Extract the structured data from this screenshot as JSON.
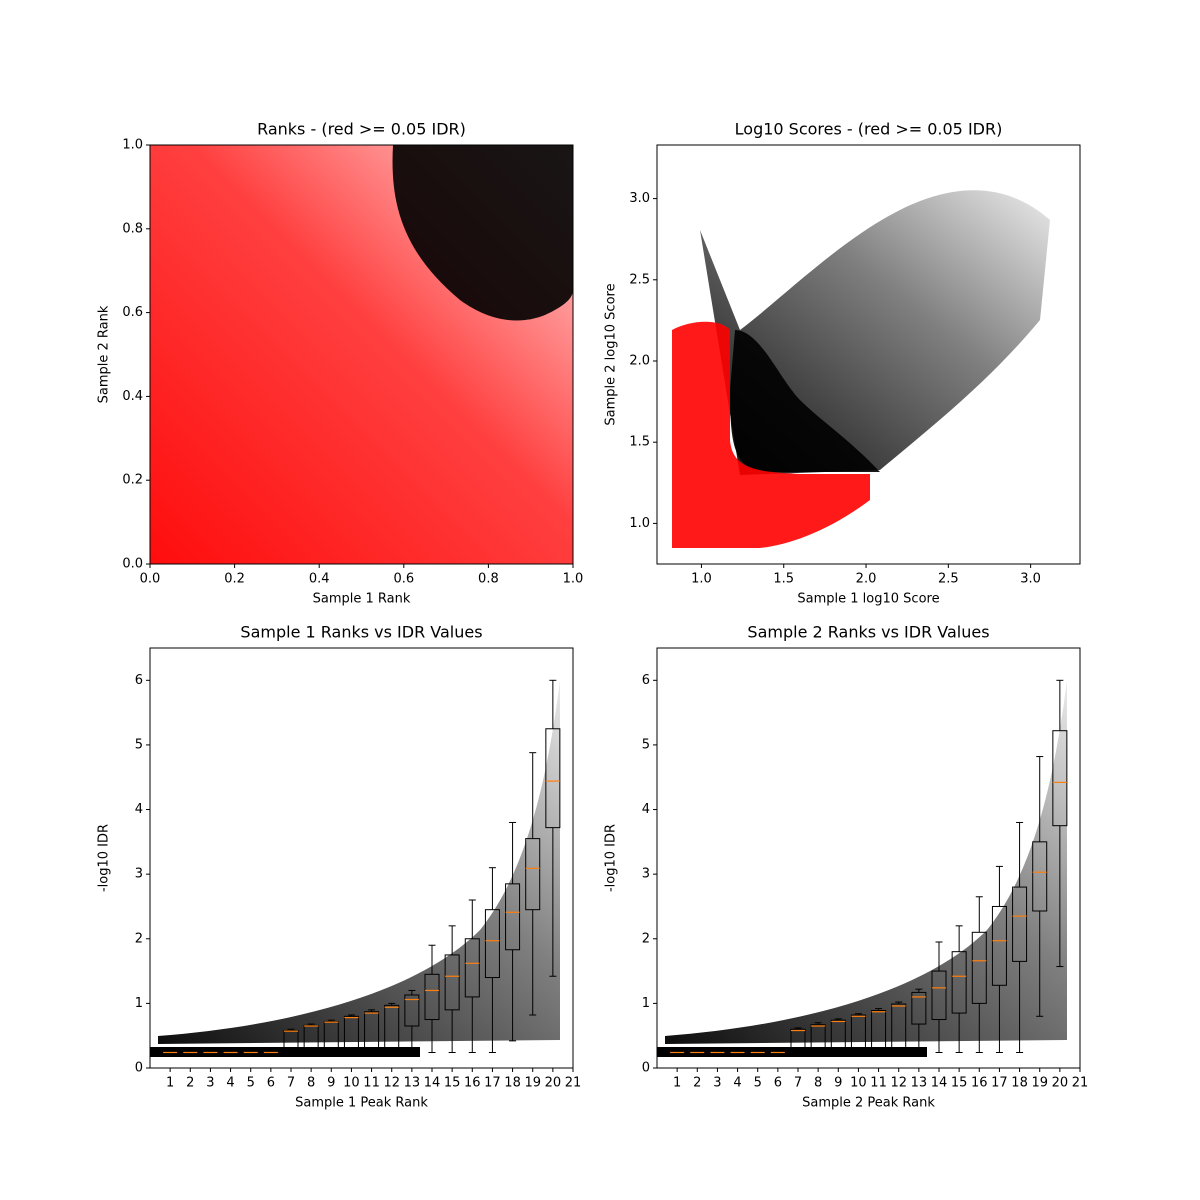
{
  "chart_data": [
    {
      "type": "scatter",
      "title": "Ranks - (red >= 0.05 IDR)",
      "xlabel": "Sample 1 Rank",
      "ylabel": "Sample 2 Rank",
      "xlim": [
        0,
        1
      ],
      "ylim": [
        0,
        1
      ],
      "xticks": [
        {
          "value": 0,
          "label": "0.0"
        },
        0.2,
        0.4,
        0.6,
        0.8,
        {
          "value": 1,
          "label": "1.0"
        }
      ],
      "yticks": [
        {
          "value": 0,
          "label": "0.0"
        },
        0.2,
        0.4,
        0.6,
        0.8,
        {
          "value": 1,
          "label": "1.0"
        }
      ]
    },
    {
      "type": "scatter",
      "title": "Log10 Scores - (red >= 0.05 IDR)",
      "xlabel": "Sample 1 log10 Score",
      "ylabel": "Sample 2 log10 Score",
      "xlim": [
        0.73,
        3.3
      ],
      "ylim": [
        0.75,
        3.33
      ],
      "xticks": [
        {
          "value": 1,
          "label": "1.0"
        },
        1.5,
        {
          "value": 2,
          "label": "2.0"
        },
        2.5,
        {
          "value": 3,
          "label": "3.0"
        }
      ],
      "yticks": [
        {
          "value": 1,
          "label": "1.0"
        },
        1.5,
        {
          "value": 2,
          "label": "2.0"
        },
        2.5,
        {
          "value": 3,
          "label": "3.0"
        }
      ]
    },
    {
      "type": "box",
      "title": "Sample 1 Ranks vs IDR Values",
      "xlabel": "Sample 1 Peak Rank",
      "ylabel": "-log10 IDR",
      "xlim": [
        0,
        21
      ],
      "ylim": [
        0,
        6.5
      ],
      "xticks": [
        1,
        2,
        3,
        4,
        5,
        6,
        7,
        8,
        9,
        10,
        11,
        12,
        13,
        14,
        15,
        16,
        17,
        18,
        19,
        20,
        21
      ],
      "yticks": [
        0,
        1,
        2,
        3,
        4,
        5,
        6
      ],
      "x": [
        1,
        2,
        3,
        4,
        5,
        6,
        7,
        8,
        9,
        10,
        11,
        12,
        13,
        14,
        15,
        16,
        17,
        18,
        19,
        20
      ],
      "median": [
        0.24,
        0.24,
        0.24,
        0.24,
        0.24,
        0.24,
        0.57,
        0.65,
        0.71,
        0.78,
        0.85,
        0.94,
        1.06,
        1.2,
        1.42,
        1.62,
        1.97,
        2.41,
        3.09,
        4.44
      ],
      "q1": [
        0.24,
        0.24,
        0.24,
        0.24,
        0.24,
        0.24,
        0.25,
        0.25,
        0.25,
        0.25,
        0.26,
        0.3,
        0.65,
        0.75,
        0.9,
        1.1,
        1.4,
        1.83,
        2.45,
        3.72
      ],
      "q3": [
        0.26,
        0.26,
        0.26,
        0.26,
        0.26,
        0.26,
        0.58,
        0.66,
        0.72,
        0.8,
        0.87,
        0.97,
        1.13,
        1.45,
        1.75,
        2.0,
        2.45,
        2.85,
        3.55,
        5.25
      ],
      "whislo": [
        0.24,
        0.24,
        0.24,
        0.24,
        0.24,
        0.24,
        0.24,
        0.24,
        0.24,
        0.24,
        0.24,
        0.24,
        0.24,
        0.24,
        0.24,
        0.24,
        0.24,
        0.42,
        0.82,
        1.42
      ],
      "whishi": [
        0.28,
        0.28,
        0.28,
        0.28,
        0.28,
        0.28,
        0.6,
        0.68,
        0.74,
        0.82,
        0.9,
        1.0,
        1.2,
        1.9,
        2.2,
        2.6,
        3.1,
        3.8,
        4.88,
        6.0
      ]
    },
    {
      "type": "box",
      "title": "Sample 2 Ranks vs IDR Values",
      "xlabel": "Sample 2 Peak Rank",
      "ylabel": "-log10 IDR",
      "xlim": [
        0,
        21
      ],
      "ylim": [
        0,
        6.5
      ],
      "xticks": [
        1,
        2,
        3,
        4,
        5,
        6,
        7,
        8,
        9,
        10,
        11,
        12,
        13,
        14,
        15,
        16,
        17,
        18,
        19,
        20,
        21
      ],
      "yticks": [
        0,
        1,
        2,
        3,
        4,
        5,
        6
      ],
      "x": [
        1,
        2,
        3,
        4,
        5,
        6,
        7,
        8,
        9,
        10,
        11,
        12,
        13,
        14,
        15,
        16,
        17,
        18,
        19,
        20
      ],
      "median": [
        0.24,
        0.24,
        0.24,
        0.24,
        0.24,
        0.24,
        0.58,
        0.65,
        0.72,
        0.8,
        0.87,
        0.96,
        1.1,
        1.24,
        1.42,
        1.66,
        1.97,
        2.35,
        3.03,
        4.42
      ],
      "q1": [
        0.24,
        0.24,
        0.24,
        0.24,
        0.24,
        0.24,
        0.25,
        0.25,
        0.25,
        0.25,
        0.26,
        0.3,
        0.68,
        0.75,
        0.85,
        1.0,
        1.28,
        1.65,
        2.43,
        3.75
      ],
      "q3": [
        0.26,
        0.26,
        0.26,
        0.26,
        0.26,
        0.26,
        0.6,
        0.67,
        0.74,
        0.82,
        0.89,
        0.99,
        1.17,
        1.5,
        1.8,
        2.1,
        2.5,
        2.8,
        3.5,
        5.22
      ],
      "whislo": [
        0.24,
        0.24,
        0.24,
        0.24,
        0.24,
        0.24,
        0.24,
        0.24,
        0.24,
        0.24,
        0.24,
        0.24,
        0.24,
        0.24,
        0.24,
        0.24,
        0.24,
        0.24,
        0.8,
        1.57
      ],
      "whishi": [
        0.28,
        0.28,
        0.28,
        0.28,
        0.28,
        0.28,
        0.62,
        0.7,
        0.76,
        0.84,
        0.92,
        1.02,
        1.22,
        1.95,
        2.2,
        2.65,
        3.12,
        3.8,
        4.82,
        6.0
      ]
    }
  ]
}
